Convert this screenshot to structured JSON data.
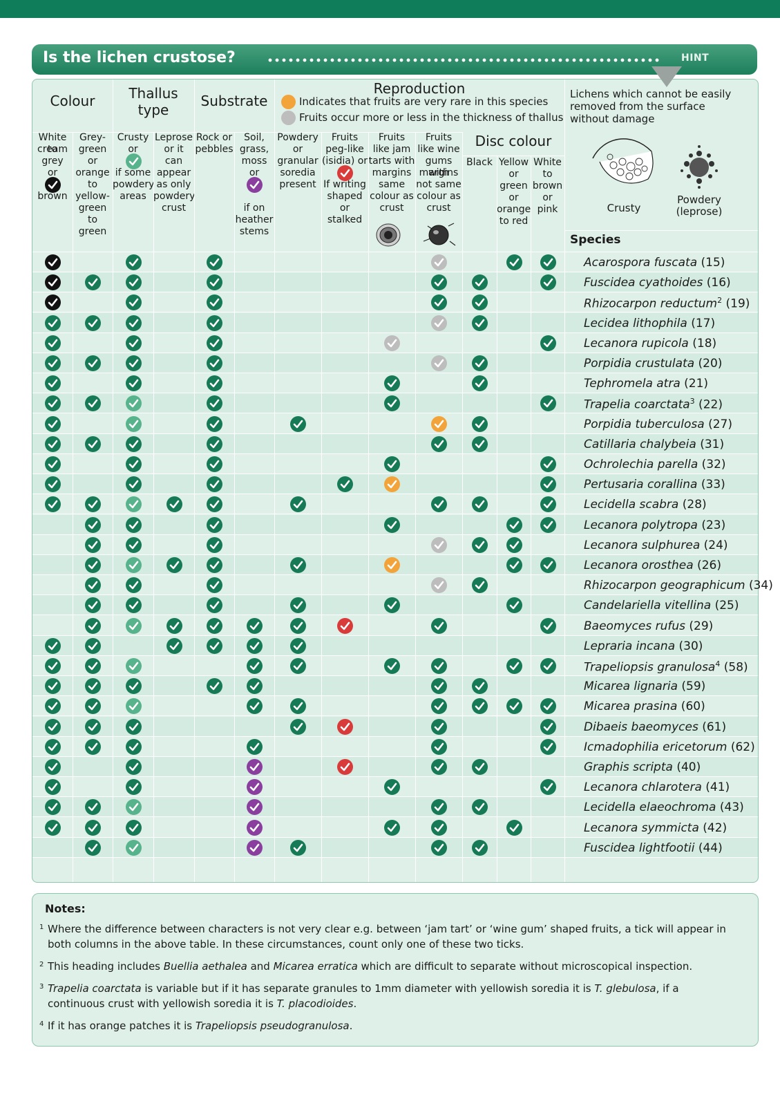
{
  "title": "Is the lichen crustose?",
  "hint": "HINT",
  "headers": {
    "colour": "Colour",
    "thallus": "Thallus type",
    "substrate": "Substrate",
    "reproduction": "Reproduction",
    "rare_note": "Indicates that fruits are very rare in this species",
    "thick_note": "Fruits occur more or less in the thickness of thallus",
    "disc": "Disc colour",
    "hint_text": "Lichens which cannot be easily removed from the surface without damage",
    "crusty_label": "Crusty",
    "powdery_label": "Powdery (leprose)",
    "species": "Species"
  },
  "subheaders": [
    "White to cream grey or brown",
    "Grey-green or orange to yellow-green to green",
    "Crusty or if some powdery areas",
    "Leprose or it can appear as only powdery crust",
    "Rock or pebbles",
    "Soil, grass, moss or if on heather stems",
    "Powdery or granular soredia present",
    "Fruits peg-like (isidia) or If writing shaped or stalked",
    "Fruits like jam tarts with margins same colour as crust",
    "Fruits like wine gums with margins not same colour as crust",
    "Black",
    "Yellow or green or orange to red",
    "White to brown or pink"
  ],
  "sub_lines": [
    [
      "White to",
      "cream",
      "grey",
      "or",
      "",
      "brown"
    ],
    [
      "Grey-",
      "green",
      "or",
      "orange",
      "to",
      "yellow-",
      "green",
      "to",
      "green"
    ],
    [
      "Crusty",
      "or",
      "",
      "if some",
      "powdery",
      "areas"
    ],
    [
      "Leprose",
      "or it",
      "can",
      "appear",
      "as only",
      "powdery",
      "crust"
    ],
    [
      "Rock or",
      "pebbles"
    ],
    [
      "Soil,",
      "grass,",
      "moss",
      "or",
      "",
      "",
      "if on",
      "heather",
      "stems"
    ],
    [
      "Powdery",
      "or",
      "granular",
      "soredia",
      "present"
    ],
    [
      "Fruits",
      "peg-like",
      "(isidia) or",
      "",
      "If writing",
      "shaped",
      "or",
      "stalked"
    ],
    [
      "Fruits",
      "like jam",
      "tarts with",
      "margins",
      "same",
      "colour as",
      "crust"
    ],
    [
      "Fruits",
      "like wine",
      "gums with",
      "margins",
      "not same",
      "colour as",
      "crust"
    ],
    [
      "Black"
    ],
    [
      "Yellow",
      "or",
      "green",
      "or",
      "orange",
      "to red"
    ],
    [
      "White",
      "to",
      "brown",
      "or",
      "pink"
    ]
  ],
  "legend_colors": {
    "green": "#177a57",
    "light_green": "#57b38c",
    "black": "#111111",
    "orange": "#f2a43b",
    "silver": "#bdbdbd",
    "red": "#d93a3a",
    "purple": "#8a3f9f"
  },
  "rows": [
    {
      "species": "Acarospora fuscata",
      "num": "(15)",
      "ticks": [
        "k",
        "",
        "g",
        "",
        "g",
        "",
        "",
        "",
        "",
        "s",
        "",
        "g",
        "g"
      ]
    },
    {
      "species": "Fuscidea cyathoides",
      "num": "(16)",
      "ticks": [
        "k",
        "g",
        "g",
        "",
        "g",
        "",
        "",
        "",
        "",
        "g",
        "g",
        "",
        "g"
      ]
    },
    {
      "species": "Rhizocarpon reductum",
      "sup": "2",
      "num": "(19)",
      "ticks": [
        "k",
        "",
        "g",
        "",
        "g",
        "",
        "",
        "",
        "",
        "g",
        "g",
        "",
        ""
      ]
    },
    {
      "species": "Lecidea lithophila",
      "num": "(17)",
      "ticks": [
        "g",
        "g",
        "g",
        "",
        "g",
        "",
        "",
        "",
        "",
        "s",
        "g",
        "",
        ""
      ]
    },
    {
      "species": "Lecanora rupicola",
      "num": "(18)",
      "ticks": [
        "g",
        "",
        "g",
        "",
        "g",
        "",
        "",
        "",
        "s",
        "",
        "",
        "",
        "g"
      ]
    },
    {
      "species": "Porpidia crustulata",
      "num": "(20)",
      "ticks": [
        "g",
        "g",
        "g",
        "",
        "g",
        "",
        "",
        "",
        "",
        "s",
        "g",
        "",
        ""
      ]
    },
    {
      "species": "Tephromela atra",
      "num": "(21)",
      "ticks": [
        "g",
        "",
        "g",
        "",
        "g",
        "",
        "",
        "",
        "g",
        "",
        "g",
        "",
        ""
      ]
    },
    {
      "species": "Trapelia coarctata",
      "sup": "3",
      "num": "(22)",
      "ticks": [
        "g",
        "g",
        "lg",
        "",
        "g",
        "",
        "",
        "",
        "g",
        "",
        "",
        "",
        "g"
      ]
    },
    {
      "species": "Porpidia tuberculosa",
      "num": "(27)",
      "ticks": [
        "g",
        "",
        "lg",
        "",
        "g",
        "",
        "g",
        "",
        "",
        "o",
        "g",
        "",
        ""
      ]
    },
    {
      "species": "Catillaria chalybeia",
      "num": "(31)",
      "ticks": [
        "g",
        "g",
        "g",
        "",
        "g",
        "",
        "",
        "",
        "",
        "g",
        "g",
        "",
        ""
      ]
    },
    {
      "species": "Ochrolechia parella",
      "num": "(32)",
      "ticks": [
        "g",
        "",
        "g",
        "",
        "g",
        "",
        "",
        "",
        "g",
        "",
        "",
        "",
        "g"
      ]
    },
    {
      "species": "Pertusaria corallina",
      "num": "(33)",
      "ticks": [
        "g",
        "",
        "g",
        "",
        "g",
        "",
        "",
        "g",
        "o",
        "",
        "",
        "",
        "g"
      ]
    },
    {
      "species": "Lecidella scabra",
      "num": "(28)",
      "ticks": [
        "g",
        "g",
        "lg",
        "g",
        "g",
        "",
        "g",
        "",
        "",
        "g",
        "g",
        "",
        "g"
      ]
    },
    {
      "species": "Lecanora polytropa",
      "num": "(23)",
      "ticks": [
        "",
        "g",
        "g",
        "",
        "g",
        "",
        "",
        "",
        "g",
        "",
        "",
        "g",
        "g"
      ]
    },
    {
      "species": "Lecanora sulphurea",
      "num": "(24)",
      "ticks": [
        "",
        "g",
        "g",
        "",
        "g",
        "",
        "",
        "",
        "",
        "s",
        "g",
        "g",
        ""
      ]
    },
    {
      "species": "Lecanora orosthea",
      "num": "(26)",
      "ticks": [
        "",
        "g",
        "lg",
        "g",
        "g",
        "",
        "g",
        "",
        "o",
        "",
        "",
        "g",
        "g"
      ]
    },
    {
      "species": "Rhizocarpon geographicum",
      "num": "(34)",
      "ticks": [
        "",
        "g",
        "g",
        "",
        "g",
        "",
        "",
        "",
        "",
        "s",
        "g",
        "",
        ""
      ]
    },
    {
      "species": "Candelariella vitellina",
      "num": "(25)",
      "ticks": [
        "",
        "g",
        "g",
        "",
        "g",
        "",
        "g",
        "",
        "g",
        "",
        "",
        "g",
        ""
      ]
    },
    {
      "species": "Baeomyces rufus",
      "num": "(29)",
      "ticks": [
        "",
        "g",
        "lg",
        "g",
        "g",
        "g",
        "g",
        "r",
        "",
        "g",
        "",
        "",
        "g"
      ]
    },
    {
      "species": "Lepraria incana",
      "num": "(30)",
      "ticks": [
        "g",
        "g",
        "",
        "g",
        "g",
        "g",
        "g",
        "",
        "",
        "",
        "",
        "",
        ""
      ]
    },
    {
      "species": "Trapeliopsis granulosa",
      "sup": "4",
      "num": "(58)",
      "ticks": [
        "g",
        "g",
        "lg",
        "",
        "",
        "g",
        "g",
        "",
        "g",
        "g",
        "",
        "g",
        "g"
      ]
    },
    {
      "species": "Micarea lignaria",
      "num": "(59)",
      "ticks": [
        "g",
        "g",
        "g",
        "",
        "g",
        "g",
        "",
        "",
        "",
        "g",
        "g",
        "",
        ""
      ]
    },
    {
      "species": "Micarea prasina",
      "num": "(60)",
      "ticks": [
        "g",
        "g",
        "lg",
        "",
        "",
        "g",
        "g",
        "",
        "",
        "g",
        "g",
        "g",
        "g"
      ]
    },
    {
      "species": "Dibaeis baeomyces",
      "num": "(61)",
      "ticks": [
        "g",
        "g",
        "g",
        "",
        "",
        "",
        "g",
        "r",
        "",
        "g",
        "",
        "",
        "g"
      ]
    },
    {
      "species": "Icmadophilia ericetorum",
      "num": "(62)",
      "ticks": [
        "g",
        "g",
        "g",
        "",
        "",
        "g",
        "",
        "",
        "",
        "g",
        "",
        "",
        "g"
      ]
    },
    {
      "species": "Graphis scripta",
      "num": "(40)",
      "ticks": [
        "g",
        "",
        "g",
        "",
        "",
        "p",
        "",
        "r",
        "",
        "g",
        "g",
        "",
        ""
      ]
    },
    {
      "species": "Lecanora chlarotera",
      "num": "(41)",
      "ticks": [
        "g",
        "",
        "g",
        "",
        "",
        "p",
        "",
        "",
        "g",
        "",
        "",
        "",
        "g"
      ]
    },
    {
      "species": "Lecidella elaeochroma",
      "num": "(43)",
      "ticks": [
        "g",
        "g",
        "lg",
        "",
        "",
        "p",
        "",
        "",
        "",
        "g",
        "g",
        "",
        ""
      ]
    },
    {
      "species": "Lecanora symmicta",
      "num": "(42)",
      "ticks": [
        "g",
        "g",
        "g",
        "",
        "",
        "p",
        "",
        "",
        "g",
        "g",
        "",
        "g",
        ""
      ]
    },
    {
      "species": "Fuscidea lightfootii",
      "num": "(44)",
      "ticks": [
        "",
        "g",
        "lg",
        "",
        "",
        "p",
        "g",
        "",
        "",
        "g",
        "g",
        "",
        ""
      ]
    }
  ],
  "notes_title": "Notes:",
  "notes": [
    {
      "n": "1",
      "text": "Where the difference between characters is not very clear e.g. between ‘jam tart’ or ‘wine gum’ shaped fruits, a tick will appear in both columns in the above table. In these circumstances, count only one of these two ticks."
    },
    {
      "n": "2",
      "text": "This heading includes Buellia aethalea and Micarea erratica which are difficult to separate without microscopical inspection."
    },
    {
      "n": "3",
      "text": "Trapelia coarctata is variable but if it has separate granules to 1mm diameter with yellowish soredia it is T. glebulosa, if a continuous crust with yellowish soredia it is T. placodioides."
    },
    {
      "n": "4",
      "text": "If it has orange patches it is Trapeliopsis pseudogranulosa."
    }
  ]
}
